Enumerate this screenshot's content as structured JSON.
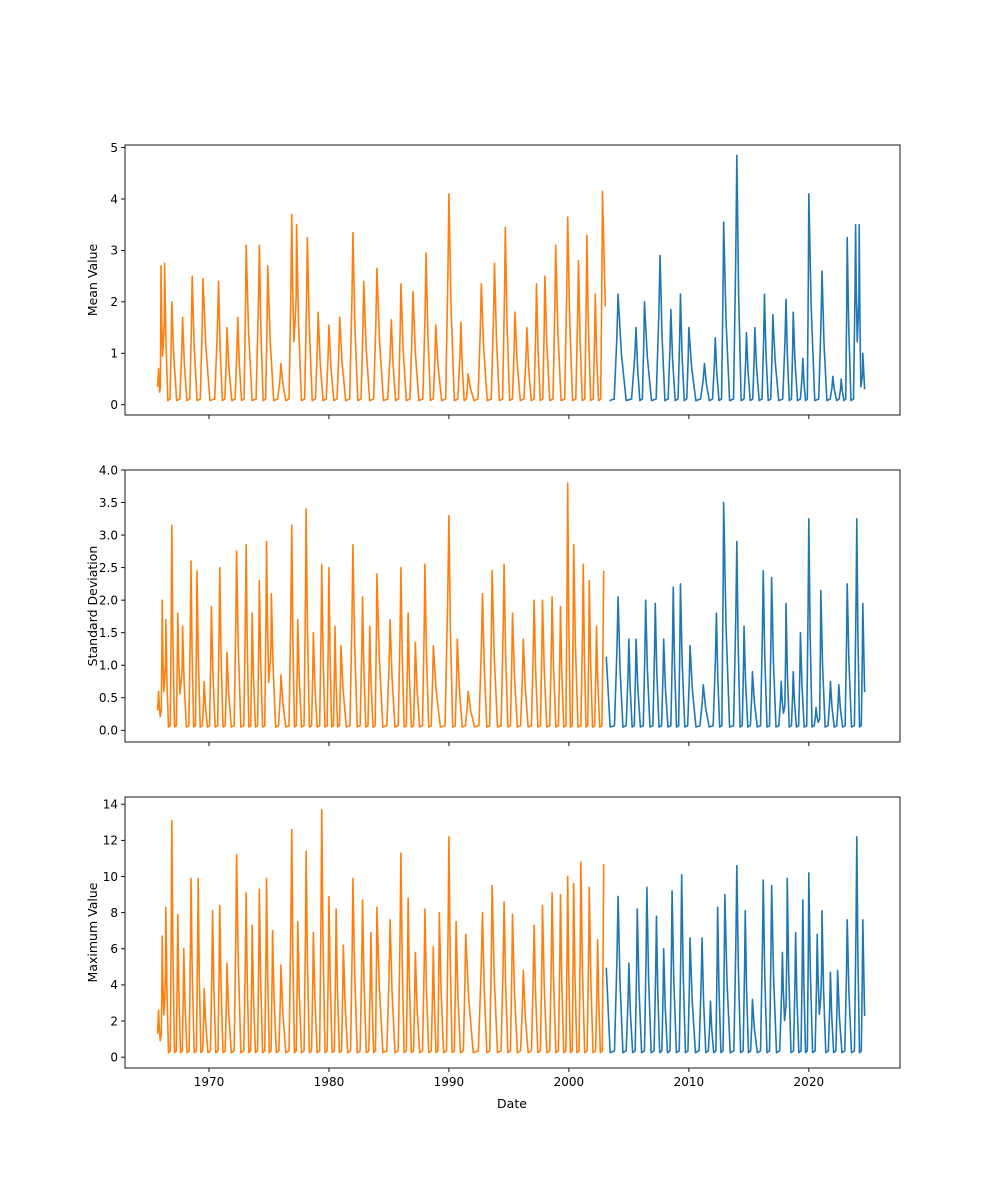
{
  "chart_data": {
    "type": "line",
    "xlabel": "Date",
    "xlim": [
      1963.0,
      2027.6
    ],
    "xticks": [
      1970,
      1980,
      1990,
      2000,
      2010,
      2020
    ],
    "xtick_labels": [
      "1970",
      "1980",
      "1990",
      "2000",
      "2010",
      "2020"
    ],
    "series_colors": {
      "historical": "#ff7f0e",
      "recent": "#1f77b4"
    },
    "split_year": 2003.1,
    "panels": [
      {
        "ylabel": "Mean Value",
        "ylim": [
          -0.2,
          5.05
        ],
        "yticks": [
          0,
          1,
          2,
          3,
          4,
          5
        ],
        "ytick_labels": [
          "0",
          "1",
          "2",
          "3",
          "4",
          "5"
        ],
        "base": 0.08,
        "peaks": [
          [
            1965.8,
            0.7
          ],
          [
            1966.0,
            2.7
          ],
          [
            1966.3,
            2.75
          ],
          [
            1966.9,
            2.0
          ],
          [
            1967.8,
            1.7
          ],
          [
            1968.6,
            2.5
          ],
          [
            1969.5,
            2.45
          ],
          [
            1970.8,
            2.4
          ],
          [
            1971.5,
            1.5
          ],
          [
            1972.4,
            1.7
          ],
          [
            1973.1,
            3.1
          ],
          [
            1974.2,
            3.1
          ],
          [
            1974.9,
            2.7
          ],
          [
            1976.0,
            0.8
          ],
          [
            1976.9,
            3.7
          ],
          [
            1977.3,
            3.5
          ],
          [
            1978.2,
            3.25
          ],
          [
            1979.1,
            1.8
          ],
          [
            1980.0,
            1.55
          ],
          [
            1980.9,
            1.7
          ],
          [
            1982.0,
            3.35
          ],
          [
            1982.9,
            2.4
          ],
          [
            1984.0,
            2.65
          ],
          [
            1985.2,
            1.65
          ],
          [
            1986.0,
            2.35
          ],
          [
            1987.0,
            2.2
          ],
          [
            1988.1,
            2.95
          ],
          [
            1988.9,
            1.55
          ],
          [
            1990.0,
            4.1
          ],
          [
            1991.0,
            1.6
          ],
          [
            1991.6,
            0.6
          ],
          [
            1992.7,
            2.35
          ],
          [
            1993.8,
            2.75
          ],
          [
            1994.7,
            3.45
          ],
          [
            1995.5,
            1.8
          ],
          [
            1996.5,
            1.5
          ],
          [
            1997.3,
            2.35
          ],
          [
            1998.0,
            2.5
          ],
          [
            1998.9,
            3.1
          ],
          [
            1999.9,
            3.65
          ],
          [
            2000.8,
            2.8
          ],
          [
            2001.5,
            3.3
          ],
          [
            2002.2,
            2.15
          ],
          [
            2002.8,
            4.15
          ],
          [
            2004.1,
            2.15
          ],
          [
            2005.6,
            1.5
          ],
          [
            2006.3,
            2.0
          ],
          [
            2007.6,
            2.9
          ],
          [
            2008.5,
            1.85
          ],
          [
            2009.3,
            2.15
          ],
          [
            2010.0,
            1.5
          ],
          [
            2011.3,
            0.8
          ],
          [
            2012.2,
            1.3
          ],
          [
            2012.9,
            3.55
          ],
          [
            2014.0,
            4.85
          ],
          [
            2014.8,
            1.4
          ],
          [
            2015.5,
            1.5
          ],
          [
            2016.3,
            2.15
          ],
          [
            2017.0,
            1.75
          ],
          [
            2018.1,
            2.05
          ],
          [
            2018.7,
            1.8
          ],
          [
            2019.5,
            0.9
          ],
          [
            2020.0,
            4.1
          ],
          [
            2021.1,
            2.6
          ],
          [
            2022.0,
            0.55
          ],
          [
            2022.7,
            0.5
          ],
          [
            2023.2,
            3.25
          ],
          [
            2023.9,
            3.5
          ],
          [
            2024.2,
            3.5
          ],
          [
            2024.5,
            1.0
          ]
        ]
      },
      {
        "ylabel": "Standard Deviation",
        "ylim": [
          -0.18,
          4.0
        ],
        "yticks": [
          0.0,
          0.5,
          1.0,
          1.5,
          2.0,
          2.5,
          3.0,
          3.5,
          4.0
        ],
        "ytick_labels": [
          "0.0",
          "0.5",
          "1.0",
          "1.5",
          "2.0",
          "2.5",
          "3.0",
          "3.5",
          "4.0"
        ],
        "base": 0.05,
        "peaks": [
          [
            1965.8,
            0.6
          ],
          [
            1966.1,
            2.0
          ],
          [
            1966.4,
            1.7
          ],
          [
            1966.9,
            3.15
          ],
          [
            1967.4,
            1.8
          ],
          [
            1967.8,
            1.6
          ],
          [
            1968.5,
            2.6
          ],
          [
            1969.0,
            2.45
          ],
          [
            1969.6,
            0.75
          ],
          [
            1970.2,
            1.9
          ],
          [
            1970.9,
            2.5
          ],
          [
            1971.5,
            1.2
          ],
          [
            1972.3,
            2.75
          ],
          [
            1973.1,
            2.85
          ],
          [
            1973.6,
            1.8
          ],
          [
            1974.2,
            2.3
          ],
          [
            1974.8,
            2.9
          ],
          [
            1975.2,
            2.1
          ],
          [
            1976.0,
            0.85
          ],
          [
            1976.9,
            3.15
          ],
          [
            1977.4,
            1.7
          ],
          [
            1978.1,
            3.4
          ],
          [
            1978.7,
            1.5
          ],
          [
            1979.4,
            2.55
          ],
          [
            1980.0,
            2.5
          ],
          [
            1980.5,
            1.6
          ],
          [
            1981.0,
            1.3
          ],
          [
            1982.0,
            2.85
          ],
          [
            1982.8,
            2.05
          ],
          [
            1983.4,
            1.6
          ],
          [
            1984.0,
            2.4
          ],
          [
            1985.1,
            1.7
          ],
          [
            1986.0,
            2.5
          ],
          [
            1986.6,
            1.8
          ],
          [
            1987.2,
            1.35
          ],
          [
            1988.0,
            2.55
          ],
          [
            1988.7,
            1.3
          ],
          [
            1990.0,
            3.3
          ],
          [
            1990.7,
            1.4
          ],
          [
            1991.6,
            0.6
          ],
          [
            1992.8,
            2.1
          ],
          [
            1993.6,
            2.45
          ],
          [
            1994.6,
            2.55
          ],
          [
            1995.3,
            1.8
          ],
          [
            1996.2,
            1.4
          ],
          [
            1997.1,
            2.0
          ],
          [
            1997.8,
            2.0
          ],
          [
            1998.6,
            2.05
          ],
          [
            1999.3,
            1.9
          ],
          [
            1999.9,
            3.8
          ],
          [
            2000.4,
            2.85
          ],
          [
            2001.2,
            2.55
          ],
          [
            2001.7,
            2.3
          ],
          [
            2002.3,
            1.6
          ],
          [
            2002.9,
            2.45
          ],
          [
            2004.1,
            2.05
          ],
          [
            2005.0,
            1.4
          ],
          [
            2005.6,
            1.4
          ],
          [
            2006.4,
            2.0
          ],
          [
            2007.2,
            1.95
          ],
          [
            2007.9,
            1.4
          ],
          [
            2008.7,
            2.2
          ],
          [
            2009.3,
            2.25
          ],
          [
            2010.1,
            1.3
          ],
          [
            2011.2,
            0.7
          ],
          [
            2012.3,
            1.8
          ],
          [
            2012.9,
            3.5
          ],
          [
            2014.0,
            2.9
          ],
          [
            2014.6,
            1.6
          ],
          [
            2015.3,
            0.9
          ],
          [
            2016.2,
            2.45
          ],
          [
            2016.9,
            2.35
          ],
          [
            2017.7,
            0.75
          ],
          [
            2018.1,
            1.95
          ],
          [
            2018.7,
            0.9
          ],
          [
            2019.3,
            1.5
          ],
          [
            2020.0,
            3.25
          ],
          [
            2020.6,
            0.35
          ],
          [
            2021.0,
            2.15
          ],
          [
            2021.8,
            0.75
          ],
          [
            2022.5,
            0.7
          ],
          [
            2023.2,
            2.25
          ],
          [
            2024.0,
            3.25
          ],
          [
            2024.5,
            1.95
          ]
        ]
      },
      {
        "ylabel": "Maximum Value",
        "ylim": [
          -0.6,
          14.4
        ],
        "yticks": [
          0,
          2,
          4,
          6,
          8,
          10,
          12,
          14
        ],
        "ytick_labels": [
          "0",
          "2",
          "4",
          "6",
          "8",
          "10",
          "12",
          "14"
        ],
        "base": 0.25,
        "peaks": [
          [
            1965.8,
            2.6
          ],
          [
            1966.1,
            6.7
          ],
          [
            1966.4,
            8.3
          ],
          [
            1966.9,
            13.1
          ],
          [
            1967.4,
            7.9
          ],
          [
            1967.9,
            6.0
          ],
          [
            1968.5,
            9.9
          ],
          [
            1969.1,
            9.9
          ],
          [
            1969.6,
            3.8
          ],
          [
            1970.3,
            8.1
          ],
          [
            1970.9,
            8.4
          ],
          [
            1971.5,
            5.2
          ],
          [
            1972.3,
            11.2
          ],
          [
            1973.1,
            9.1
          ],
          [
            1973.6,
            7.3
          ],
          [
            1974.2,
            9.3
          ],
          [
            1974.8,
            9.9
          ],
          [
            1975.3,
            7.0
          ],
          [
            1976.0,
            5.1
          ],
          [
            1976.9,
            12.6
          ],
          [
            1977.4,
            7.5
          ],
          [
            1978.1,
            11.4
          ],
          [
            1978.7,
            6.9
          ],
          [
            1979.4,
            13.7
          ],
          [
            1980.0,
            8.9
          ],
          [
            1980.6,
            8.2
          ],
          [
            1981.2,
            6.2
          ],
          [
            1982.0,
            9.9
          ],
          [
            1982.8,
            8.7
          ],
          [
            1983.5,
            6.9
          ],
          [
            1984.0,
            8.3
          ],
          [
            1985.1,
            7.6
          ],
          [
            1986.0,
            11.3
          ],
          [
            1986.6,
            8.8
          ],
          [
            1987.2,
            5.8
          ],
          [
            1988.0,
            8.2
          ],
          [
            1988.7,
            6.1
          ],
          [
            1989.2,
            8.0
          ],
          [
            1990.0,
            12.2
          ],
          [
            1990.6,
            7.5
          ],
          [
            1991.4,
            6.8
          ],
          [
            1992.8,
            8.0
          ],
          [
            1993.6,
            9.5
          ],
          [
            1994.6,
            8.6
          ],
          [
            1995.3,
            7.9
          ],
          [
            1996.2,
            4.8
          ],
          [
            1997.1,
            7.3
          ],
          [
            1997.8,
            8.4
          ],
          [
            1998.6,
            9.1
          ],
          [
            1999.3,
            9.0
          ],
          [
            1999.9,
            10.0
          ],
          [
            2000.4,
            9.6
          ],
          [
            2001.0,
            10.8
          ],
          [
            2001.7,
            9.4
          ],
          [
            2002.4,
            6.5
          ],
          [
            2002.9,
            10.7
          ],
          [
            2004.1,
            8.9
          ],
          [
            2005.0,
            5.2
          ],
          [
            2005.7,
            8.2
          ],
          [
            2006.5,
            9.4
          ],
          [
            2007.3,
            7.8
          ],
          [
            2007.9,
            6.0
          ],
          [
            2008.6,
            9.2
          ],
          [
            2009.4,
            10.1
          ],
          [
            2010.1,
            6.6
          ],
          [
            2011.1,
            6.6
          ],
          [
            2011.8,
            3.1
          ],
          [
            2012.4,
            8.3
          ],
          [
            2013.0,
            9.0
          ],
          [
            2014.0,
            10.6
          ],
          [
            2014.7,
            8.1
          ],
          [
            2015.3,
            3.2
          ],
          [
            2016.2,
            9.8
          ],
          [
            2016.9,
            9.5
          ],
          [
            2017.8,
            5.8
          ],
          [
            2018.2,
            9.9
          ],
          [
            2018.9,
            6.9
          ],
          [
            2019.5,
            8.7
          ],
          [
            2020.0,
            10.2
          ],
          [
            2020.7,
            6.8
          ],
          [
            2021.1,
            8.1
          ],
          [
            2021.8,
            4.7
          ],
          [
            2022.4,
            4.8
          ],
          [
            2023.2,
            7.6
          ],
          [
            2024.0,
            12.2
          ],
          [
            2024.5,
            7.6
          ]
        ]
      }
    ]
  }
}
